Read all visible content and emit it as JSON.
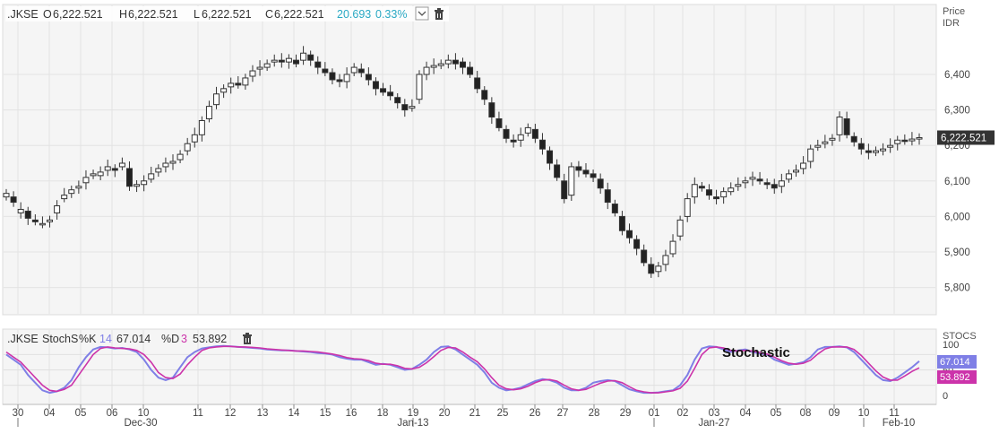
{
  "legend_main": {
    "symbol": ".JKSE",
    "o_label": "O",
    "o_value": "6,222.521",
    "h_label": "H",
    "h_value": "6,222.521",
    "l_label": "L",
    "l_value": "6,222.521",
    "c_label": "C",
    "c_value": "6,222.521",
    "change": "20.693",
    "change_pct": "0.33%"
  },
  "price_axis": {
    "title": "Price",
    "unit": "IDR",
    "last_price": "6,222.521"
  },
  "legend_stoch": {
    "symbol": ".JKSE",
    "name": "StochS",
    "k_label": "%K",
    "k_period": "14",
    "k_value": "67.014",
    "d_label": "%D",
    "d_period": "3",
    "d_value": "53.892"
  },
  "stoch_axis": {
    "title": "STOCS",
    "k_tag": "67.014",
    "d_tag": "53.892"
  },
  "annotation": "Stochastic",
  "colors": {
    "up_body": "#ffffff",
    "down_body": "#222222",
    "k_line": "#7f7fe6",
    "d_line": "#cc33aa",
    "change": "#2aa9c4",
    "last_tag": "#333333"
  },
  "chart_data": [
    {
      "type": "candlestick",
      "yticks": [
        5800,
        5900,
        6000,
        6100,
        6200,
        6300,
        6400
      ],
      "ylim": [
        5735,
        6510
      ],
      "x_ticks": [
        "30",
        "04",
        "05",
        "06",
        "10",
        "11",
        "12",
        "13",
        "14",
        "15",
        "16",
        "18",
        "19",
        "20",
        "21",
        "25",
        "26",
        "27",
        "28",
        "29",
        "01",
        "02",
        "03",
        "04",
        "05",
        "08",
        "09",
        "10",
        "11"
      ],
      "x_month_labels": [
        "Dec-30",
        "Jan-13",
        "Jan-27",
        "Feb-10"
      ],
      "close": [
        6065,
        6040,
        6020,
        5995,
        5985,
        5980,
        5990,
        6030,
        6060,
        6075,
        6085,
        6110,
        6120,
        6125,
        6140,
        6130,
        6150,
        6085,
        6090,
        6100,
        6120,
        6135,
        6150,
        6155,
        6175,
        6205,
        6230,
        6270,
        6310,
        6345,
        6360,
        6375,
        6370,
        6390,
        6410,
        6420,
        6430,
        6440,
        6435,
        6445,
        6430,
        6460,
        6440,
        6420,
        6405,
        6385,
        6380,
        6400,
        6420,
        6405,
        6385,
        6360,
        6350,
        6340,
        6320,
        6300,
        6310,
        6400,
        6420,
        6425,
        6430,
        6440,
        6430,
        6420,
        6400,
        6360,
        6330,
        6280,
        6250,
        6220,
        6210,
        6230,
        6250,
        6220,
        6190,
        6150,
        6110,
        6050,
        6140,
        6130,
        6120,
        6110,
        6080,
        6040,
        6010,
        5960,
        5940,
        5910,
        5870,
        5840,
        5860,
        5890,
        5930,
        5990,
        6050,
        6090,
        6080,
        6060,
        6050,
        6070,
        6080,
        6090,
        6100,
        6110,
        6100,
        6090,
        6080,
        6100,
        6120,
        6130,
        6150,
        6190,
        6200,
        6210,
        6220,
        6280,
        6230,
        6210,
        6190,
        6180,
        6185,
        6190,
        6200,
        6215,
        6212,
        6218,
        6222
      ],
      "open_delta": [
        -10,
        15,
        -10,
        20,
        5,
        0,
        -5,
        -20,
        -10,
        -10,
        -5,
        -15,
        -5,
        -10,
        -10,
        5,
        -10,
        50,
        -5,
        -10,
        -15,
        -10,
        -10,
        -5,
        -15,
        -20,
        -20,
        -40,
        -35,
        -30,
        -10,
        -10,
        5,
        -20,
        -15,
        -5,
        -10,
        -5,
        5,
        -10,
        10,
        -20,
        15,
        15,
        10,
        20,
        5,
        -20,
        -15,
        10,
        15,
        20,
        10,
        10,
        15,
        15,
        -5,
        -70,
        -20,
        -5,
        -5,
        -10,
        10,
        15,
        20,
        30,
        25,
        40,
        25,
        25,
        5,
        -15,
        -15,
        25,
        25,
        35,
        35,
        50,
        -80,
        10,
        10,
        10,
        25,
        35,
        25,
        40,
        20,
        25,
        35,
        25,
        -15,
        -25,
        -35,
        -45,
        -50,
        -35,
        5,
        15,
        5,
        -15,
        -10,
        -5,
        -5,
        -5,
        5,
        5,
        10,
        -15,
        -15,
        -5,
        -15,
        -35,
        -5,
        -5,
        -5,
        -50,
        45,
        15,
        15,
        5,
        -5,
        -5,
        -5,
        -10,
        3,
        -5,
        -4
      ],
      "series": [
        {
          "name": "%K",
          "values": [
            80,
            70,
            60,
            40,
            25,
            10,
            5,
            8,
            15,
            30,
            55,
            75,
            90,
            95,
            94,
            92,
            93,
            90,
            85,
            70,
            50,
            35,
            30,
            35,
            55,
            75,
            85,
            92,
            94,
            96,
            97,
            96,
            95,
            94,
            93,
            92,
            90,
            89,
            88,
            88,
            87,
            86,
            85,
            83,
            82,
            80,
            75,
            72,
            70,
            70,
            65,
            60,
            62,
            60,
            55,
            50,
            52,
            60,
            70,
            85,
            95,
            96,
            90,
            80,
            70,
            60,
            45,
            25,
            15,
            10,
            12,
            15,
            22,
            28,
            32,
            30,
            25,
            15,
            10,
            10,
            15,
            25,
            28,
            30,
            28,
            20,
            12,
            8,
            5,
            5,
            6,
            8,
            10,
            20,
            40,
            70,
            92,
            96,
            95,
            90,
            85,
            88,
            90,
            85,
            82,
            80,
            70,
            65,
            60,
            62,
            65,
            75,
            90,
            95,
            95,
            96,
            94,
            85,
            70,
            55,
            40,
            30,
            28,
            35,
            45,
            55,
            67
          ]
        },
        {
          "name": "%D",
          "values": [
            85,
            75,
            65,
            50,
            35,
            20,
            10,
            8,
            12,
            20,
            40,
            60,
            80,
            92,
            95,
            93,
            92,
            91,
            88,
            80,
            65,
            45,
            35,
            33,
            42,
            60,
            75,
            88,
            93,
            95,
            96,
            96,
            95,
            95,
            94,
            93,
            91,
            90,
            89,
            88,
            87,
            87,
            86,
            85,
            83,
            81,
            78,
            74,
            72,
            71,
            68,
            63,
            61,
            61,
            58,
            53,
            52,
            55,
            64,
            76,
            88,
            94,
            93,
            85,
            75,
            66,
            52,
            35,
            20,
            13,
            11,
            13,
            18,
            25,
            30,
            31,
            28,
            20,
            13,
            10,
            12,
            18,
            24,
            28,
            29,
            25,
            17,
            10,
            7,
            5,
            5,
            7,
            9,
            14,
            28,
            53,
            80,
            93,
            95,
            93,
            88,
            87,
            88,
            87,
            84,
            81,
            75,
            68,
            63,
            61,
            63,
            69,
            81,
            91,
            95,
            95,
            95,
            90,
            78,
            63,
            48,
            36,
            30,
            30,
            38,
            47,
            54
          ]
        }
      ]
    }
  ]
}
